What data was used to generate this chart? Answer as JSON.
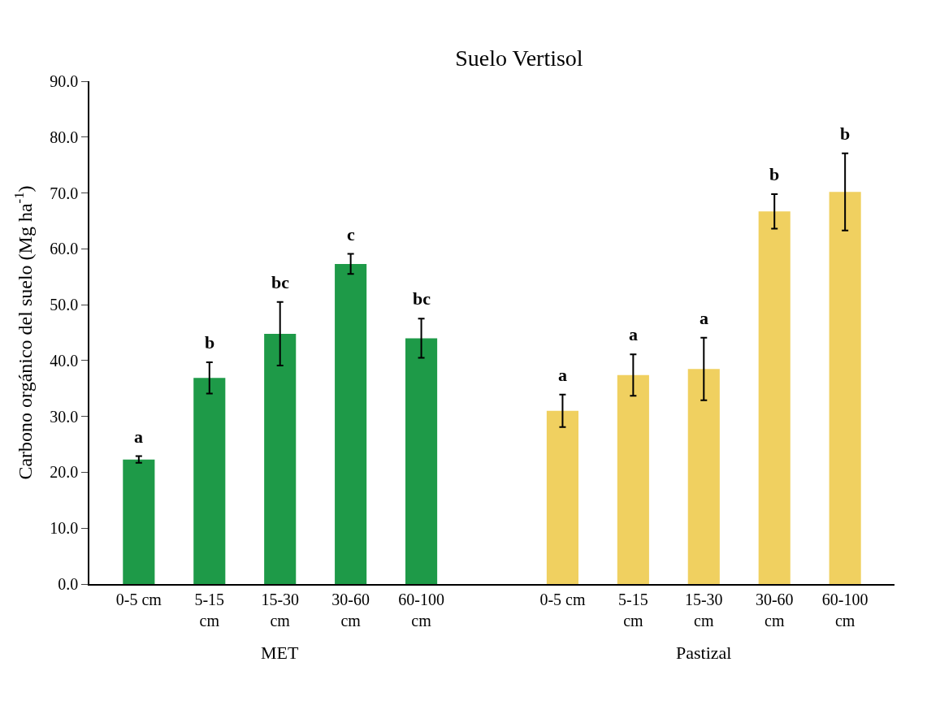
{
  "chart_data": {
    "type": "bar",
    "title": "Suelo Vertisol",
    "ylabel": "Carbono orgánico del suelo (Mg ha$^{-1}$)",
    "categories": [
      "0-5 cm",
      "5-15 cm",
      "15-30 cm",
      "30-60 cm",
      "60-100 cm",
      null,
      "0-5 cm",
      "5-15 cm",
      "15-30 cm",
      "30-60 cm",
      "60-100 cm"
    ],
    "series": [
      {
        "color": "#1e9a48",
        "values": [
          22.3,
          36.9,
          44.8,
          57.3,
          44.0,
          null,
          null,
          null,
          null,
          null,
          null
        ],
        "errors": [
          0.6,
          2.8,
          5.7,
          1.8,
          3.5,
          null,
          null,
          null,
          null,
          null,
          null
        ],
        "value_labels": [
          "a",
          "b",
          "bc",
          "c",
          "bc",
          null,
          null,
          null,
          null,
          null,
          null
        ]
      },
      {
        "color": "#f0d060",
        "values": [
          null,
          null,
          null,
          null,
          null,
          null,
          31.0,
          37.4,
          38.5,
          66.7,
          70.2
        ],
        "errors": [
          null,
          null,
          null,
          null,
          null,
          null,
          2.9,
          3.7,
          5.6,
          3.1,
          6.9
        ],
        "value_labels": [
          null,
          null,
          null,
          null,
          null,
          null,
          "a",
          "a",
          "a",
          "b",
          "b"
        ]
      }
    ],
    "annotations": [
      "MET",
      "Pastizal"
    ],
    "ylim": [
      0,
      90
    ],
    "yticks": [
      {
        "value": 0,
        "label": "0.0"
      },
      {
        "value": 10,
        "label": "10.0"
      },
      {
        "value": 20,
        "label": "20.0"
      },
      {
        "value": 30,
        "label": "30.0"
      },
      {
        "value": 40,
        "label": "40.0"
      },
      {
        "value": 50,
        "label": "50.0"
      },
      {
        "value": 60,
        "label": "60.0"
      },
      {
        "value": 70,
        "label": "70.0"
      },
      {
        "value": 80,
        "label": "80.0"
      },
      {
        "value": 90,
        "label": "90.0"
      }
    ],
    "grid": false
  }
}
